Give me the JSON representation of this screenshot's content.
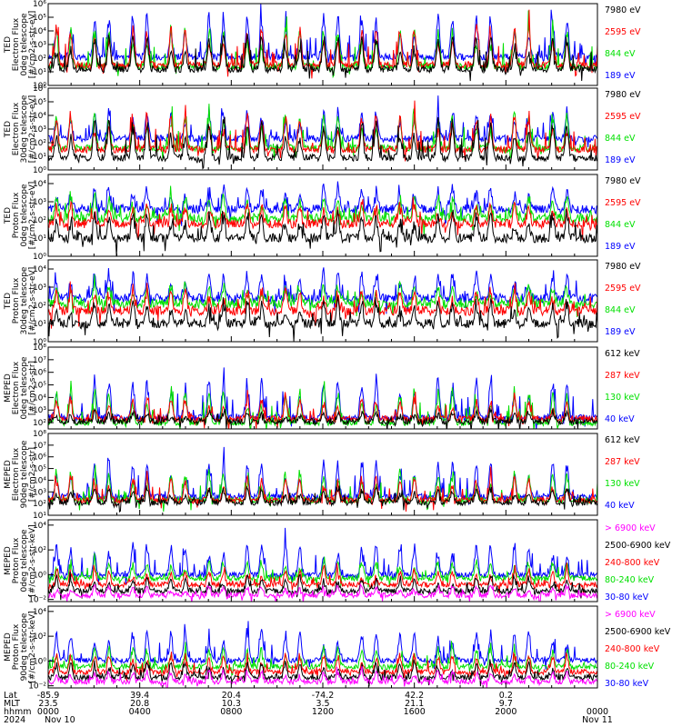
{
  "colors": {
    "black": "#000000",
    "red": "#ff0000",
    "green": "#00e000",
    "blue": "#0000ff",
    "magenta": "#ff00ff"
  },
  "chart_data": [
    {
      "type": "line",
      "panel": "TED 0deg electron",
      "ylabel_lines": [
        "TED",
        "Electron Flux",
        "0deg telescope",
        "[#/cm2-s-str-eV]"
      ],
      "yticks": [
        "10⁰",
        "10¹",
        "10²",
        "10³",
        "10⁴",
        "10⁵",
        "10⁶"
      ],
      "ylim_log10": [
        0,
        6
      ],
      "series": [
        {
          "name": "7980 eV",
          "color": "black",
          "baseline": 1.2,
          "peak": 4.0
        },
        {
          "name": "2595 eV",
          "color": "red",
          "baseline": 1.5,
          "peak": 4.8
        },
        {
          "name": "844 eV",
          "color": "green",
          "baseline": 1.4,
          "peak": 4.6
        },
        {
          "name": "189 eV",
          "color": "blue",
          "baseline": 2.1,
          "peak": 5.5
        }
      ]
    },
    {
      "type": "line",
      "panel": "TED 30deg electron",
      "ylabel_lines": [
        "TED",
        "Electron Flux",
        "30deg telescope",
        "[#/cm2-s-str-eV]"
      ],
      "yticks": [
        "10⁰",
        "10¹",
        "10²",
        "10³",
        "10⁴",
        "10⁵",
        "10⁶"
      ],
      "ylim_log10": [
        0,
        6
      ],
      "series": [
        {
          "name": "7980 eV",
          "color": "black",
          "baseline": 0.9,
          "peak": 4.0
        },
        {
          "name": "2595 eV",
          "color": "red",
          "baseline": 1.5,
          "peak": 4.5
        },
        {
          "name": "844 eV",
          "color": "green",
          "baseline": 1.6,
          "peak": 4.4
        },
        {
          "name": "189 eV",
          "color": "blue",
          "baseline": 2.3,
          "peak": 4.6
        }
      ]
    },
    {
      "type": "line",
      "panel": "TED 0deg proton",
      "ylabel_lines": [
        "TED",
        "Proton Flux",
        "0deg telescope",
        "[#/cm2-s-str-eV]"
      ],
      "yticks": [
        "10⁰",
        "10¹",
        "10²",
        "10³",
        "10⁴"
      ],
      "ylim_log10": [
        0,
        4.5
      ],
      "series": [
        {
          "name": "7980 eV",
          "color": "black",
          "baseline": 1.0,
          "peak": 2.6
        },
        {
          "name": "2595 eV",
          "color": "red",
          "baseline": 1.8,
          "peak": 3.0
        },
        {
          "name": "844 eV",
          "color": "green",
          "baseline": 2.1,
          "peak": 3.5
        },
        {
          "name": "189 eV",
          "color": "blue",
          "baseline": 2.6,
          "peak": 4.0
        }
      ]
    },
    {
      "type": "line",
      "panel": "TED 30deg proton",
      "ylabel_lines": [
        "TED",
        "Proton Flux",
        "30deg telescope",
        "[#/cm2-s-str-eV]"
      ],
      "yticks": [
        "10⁰",
        "10¹",
        "10²",
        "10³",
        "10⁴"
      ],
      "ylim_log10": [
        0,
        4.5
      ],
      "series": [
        {
          "name": "7980 eV",
          "color": "black",
          "baseline": 1.0,
          "peak": 2.4
        },
        {
          "name": "2595 eV",
          "color": "red",
          "baseline": 1.7,
          "peak": 3.0
        },
        {
          "name": "844 eV",
          "color": "green",
          "baseline": 2.1,
          "peak": 3.3
        },
        {
          "name": "189 eV",
          "color": "blue",
          "baseline": 2.4,
          "peak": 4.0
        }
      ]
    },
    {
      "type": "line",
      "panel": "MEPED 0deg electron",
      "ylabel_lines": [
        "MEPED",
        "Electron Flux",
        "0deg telescope",
        "[#/cm2-s-str]"
      ],
      "yticks": [
        "10²",
        "10³",
        "10⁴",
        "10⁵",
        "10⁶",
        "10⁷",
        "10⁸"
      ],
      "ylim_log10": [
        1.5,
        8
      ],
      "series": [
        {
          "name": "612 keV",
          "color": "black",
          "baseline": 2.1,
          "peak": 3.0
        },
        {
          "name": "287 keV",
          "color": "red",
          "baseline": 2.3,
          "peak": 4.2
        },
        {
          "name": "130 keV",
          "color": "green",
          "baseline": 2.0,
          "peak": 5.0
        },
        {
          "name": "40 keV",
          "color": "blue",
          "baseline": 2.4,
          "peak": 6.0
        }
      ]
    },
    {
      "type": "line",
      "panel": "MEPED 90deg electron",
      "ylabel_lines": [
        "MEPED",
        "Electron Flux",
        "90deg telescope",
        "[#/cm2-s-str]"
      ],
      "yticks": [
        "10¹",
        "10²",
        "10³",
        "10⁴",
        "10⁵",
        "10⁶",
        "10⁷",
        "10⁸"
      ],
      "ylim_log10": [
        1,
        8
      ],
      "series": [
        {
          "name": "612 keV",
          "color": "black",
          "baseline": 2.1,
          "peak": 3.5
        },
        {
          "name": "287 keV",
          "color": "red",
          "baseline": 2.3,
          "peak": 4.5
        },
        {
          "name": "130 keV",
          "color": "green",
          "baseline": 2.3,
          "peak": 5.0
        },
        {
          "name": "40 keV",
          "color": "blue",
          "baseline": 2.6,
          "peak": 6.0
        }
      ]
    },
    {
      "type": "line",
      "panel": "MEPED 0deg proton",
      "ylabel_lines": [
        "MEPED",
        "Proton Flux",
        "0deg telescope",
        "[#/cm2-s-str-keV]"
      ],
      "yticks": [
        "10⁻²",
        "10⁰",
        "10²",
        "10⁴"
      ],
      "ylim_log10": [
        -2.2,
        5.5
      ],
      "series": [
        {
          "name": "> 6900 keV",
          "color": "magenta",
          "baseline": -1.6,
          "peak": -0.6
        },
        {
          "name": "2500-6900 keV",
          "color": "black",
          "baseline": -1.2,
          "peak": 0.2
        },
        {
          "name": "240-800 keV",
          "color": "red",
          "baseline": -0.6,
          "peak": 1.0
        },
        {
          "name": "80-240 keV",
          "color": "green",
          "baseline": 0.0,
          "peak": 1.8
        },
        {
          "name": "30-80 keV",
          "color": "blue",
          "baseline": 0.3,
          "peak": 3.8
        }
      ]
    },
    {
      "type": "line",
      "panel": "MEPED 90deg proton",
      "ylabel_lines": [
        "MEPED",
        "Proton Flux",
        "90deg telescope",
        "[#/cm2-s-str-keV]"
      ],
      "yticks": [
        "10⁻²",
        "10⁰",
        "10²",
        "10⁴"
      ],
      "ylim_log10": [
        -2.2,
        5.5
      ],
      "series": [
        {
          "name": "> 6900 keV",
          "color": "magenta",
          "baseline": -1.6,
          "peak": -0.5
        },
        {
          "name": "2500-6900 keV",
          "color": "black",
          "baseline": -1.2,
          "peak": 0.4
        },
        {
          "name": "240-800 keV",
          "color": "red",
          "baseline": -0.7,
          "peak": 1.2
        },
        {
          "name": "80-240 keV",
          "color": "green",
          "baseline": -0.2,
          "peak": 1.8
        },
        {
          "name": "30-80 keV",
          "color": "blue",
          "baseline": 0.4,
          "peak": 3.5
        }
      ]
    }
  ],
  "x_axis": {
    "row_labels": [
      "Lat",
      "MLT",
      "hhmm",
      "2024"
    ],
    "ticks": [
      {
        "lat": "-85.9",
        "mlt": "23.5",
        "hhmm": "0000",
        "date": "Nov 10"
      },
      {
        "lat": "39.4",
        "mlt": "20.8",
        "hhmm": "0400",
        "date": ""
      },
      {
        "lat": "20.4",
        "mlt": "10.3",
        "hhmm": "0800",
        "date": ""
      },
      {
        "lat": "-74.2",
        "mlt": "3.5",
        "hhmm": "1200",
        "date": ""
      },
      {
        "lat": "42.2",
        "mlt": "21.1",
        "hhmm": "1600",
        "date": ""
      },
      {
        "lat": "0.2",
        "mlt": "9.7",
        "hhmm": "2000",
        "date": ""
      },
      {
        "lat": "",
        "mlt": "",
        "hhmm": "0000",
        "date": "Nov 11"
      }
    ]
  }
}
